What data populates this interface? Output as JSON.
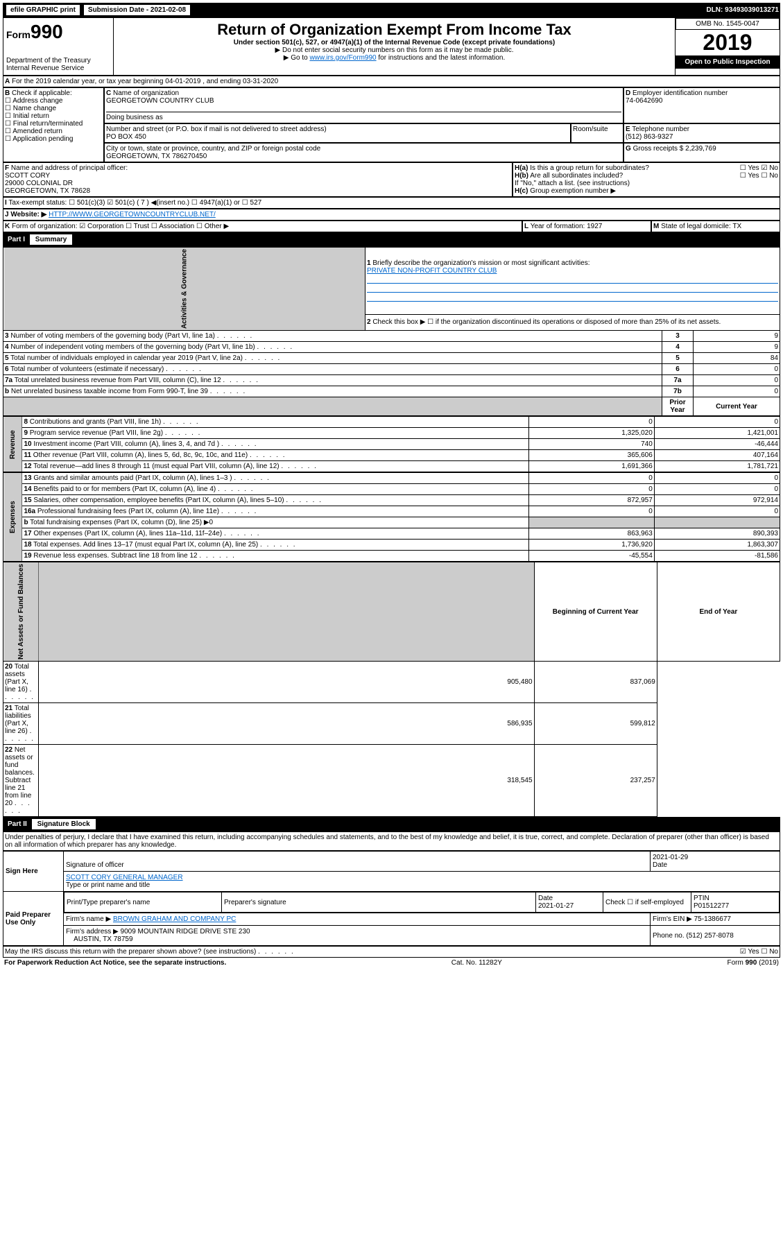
{
  "header": {
    "efile": "efile GRAPHIC print",
    "submission": "Submission Date - 2021-02-08",
    "dln": "DLN: 93493039013271"
  },
  "form": {
    "number": "990",
    "title": "Return of Organization Exempt From Income Tax",
    "subtitle": "Under section 501(c), 527, or 4947(a)(1) of the Internal Revenue Code (except private foundations)",
    "note1": "Do not enter social security numbers on this form as it may be made public.",
    "note2_pre": "Go to ",
    "note2_link": "www.irs.gov/Form990",
    "note2_post": " for instructions and the latest information.",
    "dept": "Department of the Treasury",
    "irs": "Internal Revenue Service",
    "omb": "OMB No. 1545-0047",
    "year": "2019",
    "open": "Open to Public Inspection"
  },
  "period": "For the 2019 calendar year, or tax year beginning 04-01-2019   , and ending 03-31-2020",
  "blockB": {
    "label": "Check if applicable:",
    "opts": [
      "Address change",
      "Name change",
      "Initial return",
      "Final return/terminated",
      "Amended return",
      "Application pending"
    ]
  },
  "blockC": {
    "name_lbl": "Name of organization",
    "name": "GEORGETOWN COUNTRY CLUB",
    "dba_lbl": "Doing business as",
    "addr_lbl": "Number and street (or P.O. box if mail is not delivered to street address)",
    "room_lbl": "Room/suite",
    "addr": "PO BOX 450",
    "city_lbl": "City or town, state or province, country, and ZIP or foreign postal code",
    "city": "GEORGETOWN, TX  786270450"
  },
  "blockD": {
    "lbl": "Employer identification number",
    "val": "74-0642690"
  },
  "blockE": {
    "lbl": "Telephone number",
    "val": "(512) 863-9327"
  },
  "blockG": {
    "lbl": "Gross receipts $",
    "val": "2,239,769"
  },
  "blockF": {
    "lbl": "Name and address of principal officer:",
    "name": "SCOTT CORY",
    "addr1": "29000 COLONIAL DR",
    "addr2": "GEORGETOWN, TX  78628"
  },
  "blockH": {
    "a": "Is this a group return for subordinates?",
    "b": "Are all subordinates included?",
    "note": "If \"No,\" attach a list. (see instructions)",
    "c": "Group exemption number ▶"
  },
  "taxexempt": {
    "lbl": "Tax-exempt status:",
    "opts": [
      "501(c)(3)",
      "501(c) ( 7 ) ◀(insert no.)",
      "4947(a)(1) or",
      "527"
    ]
  },
  "website": {
    "lbl": "Website: ▶",
    "val": "HTTP://WWW.GEORGETOWNCOUNTRYCLUB.NET/"
  },
  "blockK": {
    "lbl": "Form of organization:",
    "opts": [
      "Corporation",
      "Trust",
      "Association",
      "Other ▶"
    ]
  },
  "blockL": {
    "lbl": "Year of formation:",
    "val": "1927"
  },
  "blockM": {
    "lbl": "State of legal domicile:",
    "val": "TX"
  },
  "part1": {
    "hdr": "Part I",
    "title": "Summary",
    "q1": "Briefly describe the organization's mission or most significant activities:",
    "a1": "PRIVATE NON-PROFIT COUNTRY CLUB",
    "q2": "Check this box ▶ ☐  if the organization discontinued its operations or disposed of more than 25% of its net assets.",
    "sections": {
      "gov": "Activities & Governance",
      "rev": "Revenue",
      "exp": "Expenses",
      "net": "Net Assets or Fund Balances"
    },
    "cols": {
      "prior": "Prior Year",
      "current": "Current Year",
      "begin": "Beginning of Current Year",
      "end": "End of Year"
    },
    "lines": [
      {
        "n": "3",
        "t": "Number of voting members of the governing body (Part VI, line 1a)",
        "box": "3",
        "v": "9"
      },
      {
        "n": "4",
        "t": "Number of independent voting members of the governing body (Part VI, line 1b)",
        "box": "4",
        "v": "9"
      },
      {
        "n": "5",
        "t": "Total number of individuals employed in calendar year 2019 (Part V, line 2a)",
        "box": "5",
        "v": "84"
      },
      {
        "n": "6",
        "t": "Total number of volunteers (estimate if necessary)",
        "box": "6",
        "v": "0"
      },
      {
        "n": "7a",
        "t": "Total unrelated business revenue from Part VIII, column (C), line 12",
        "box": "7a",
        "v": "0"
      },
      {
        "n": "b",
        "t": "Net unrelated business taxable income from Form 990-T, line 39",
        "box": "7b",
        "v": "0"
      }
    ],
    "rev_lines": [
      {
        "n": "8",
        "t": "Contributions and grants (Part VIII, line 1h)",
        "p": "0",
        "c": "0"
      },
      {
        "n": "9",
        "t": "Program service revenue (Part VIII, line 2g)",
        "p": "1,325,020",
        "c": "1,421,001"
      },
      {
        "n": "10",
        "t": "Investment income (Part VIII, column (A), lines 3, 4, and 7d )",
        "p": "740",
        "c": "-46,444"
      },
      {
        "n": "11",
        "t": "Other revenue (Part VIII, column (A), lines 5, 6d, 8c, 9c, 10c, and 11e)",
        "p": "365,606",
        "c": "407,164"
      },
      {
        "n": "12",
        "t": "Total revenue—add lines 8 through 11 (must equal Part VIII, column (A), line 12)",
        "p": "1,691,366",
        "c": "1,781,721"
      }
    ],
    "exp_lines": [
      {
        "n": "13",
        "t": "Grants and similar amounts paid (Part IX, column (A), lines 1–3 )",
        "p": "0",
        "c": "0"
      },
      {
        "n": "14",
        "t": "Benefits paid to or for members (Part IX, column (A), line 4)",
        "p": "0",
        "c": "0"
      },
      {
        "n": "15",
        "t": "Salaries, other compensation, employee benefits (Part IX, column (A), lines 5–10)",
        "p": "872,957",
        "c": "972,914"
      },
      {
        "n": "16a",
        "t": "Professional fundraising fees (Part IX, column (A), line 11e)",
        "p": "0",
        "c": "0"
      },
      {
        "n": "b",
        "t": "Total fundraising expenses (Part IX, column (D), line 25) ▶0",
        "p": "",
        "c": "",
        "gray": true
      },
      {
        "n": "17",
        "t": "Other expenses (Part IX, column (A), lines 11a–11d, 11f–24e)",
        "p": "863,963",
        "c": "890,393"
      },
      {
        "n": "18",
        "t": "Total expenses. Add lines 13–17 (must equal Part IX, column (A), line 25)",
        "p": "1,736,920",
        "c": "1,863,307"
      },
      {
        "n": "19",
        "t": "Revenue less expenses. Subtract line 18 from line 12",
        "p": "-45,554",
        "c": "-81,586"
      }
    ],
    "net_lines": [
      {
        "n": "20",
        "t": "Total assets (Part X, line 16)",
        "p": "905,480",
        "c": "837,069"
      },
      {
        "n": "21",
        "t": "Total liabilities (Part X, line 26)",
        "p": "586,935",
        "c": "599,812"
      },
      {
        "n": "22",
        "t": "Net assets or fund balances. Subtract line 21 from line 20",
        "p": "318,545",
        "c": "237,257"
      }
    ]
  },
  "part2": {
    "hdr": "Part II",
    "title": "Signature Block",
    "perjury": "Under penalties of perjury, I declare that I have examined this return, including accompanying schedules and statements, and to the best of my knowledge and belief, it is true, correct, and complete. Declaration of preparer (other than officer) is based on all information of which preparer has any knowledge.",
    "sign_here": "Sign Here",
    "sig_date": "2021-01-29",
    "sig_lbl": "Signature of officer",
    "date_lbl": "Date",
    "name": "SCOTT CORY GENERAL MANAGER",
    "name_lbl": "Type or print name and title",
    "paid": "Paid Preparer Use Only",
    "prep_name_lbl": "Print/Type preparer's name",
    "prep_sig_lbl": "Preparer's signature",
    "prep_date_lbl": "Date",
    "prep_date": "2021-01-27",
    "self_emp": "Check ☐ if self-employed",
    "ptin_lbl": "PTIN",
    "ptin": "P01512277",
    "firm_name_lbl": "Firm's name",
    "firm_name": "BROWN GRAHAM AND COMPANY PC",
    "firm_ein_lbl": "Firm's EIN ▶",
    "firm_ein": "75-1386677",
    "firm_addr_lbl": "Firm's address ▶",
    "firm_addr1": "9009 MOUNTAIN RIDGE DRIVE STE 230",
    "firm_addr2": "AUSTIN, TX  78759",
    "phone_lbl": "Phone no.",
    "phone": "(512) 257-8078",
    "discuss": "May the IRS discuss this return with the preparer shown above? (see instructions)"
  },
  "footer": {
    "pra": "For Paperwork Reduction Act Notice, see the separate instructions.",
    "cat": "Cat. No. 11282Y",
    "form": "Form 990 (2019)"
  }
}
